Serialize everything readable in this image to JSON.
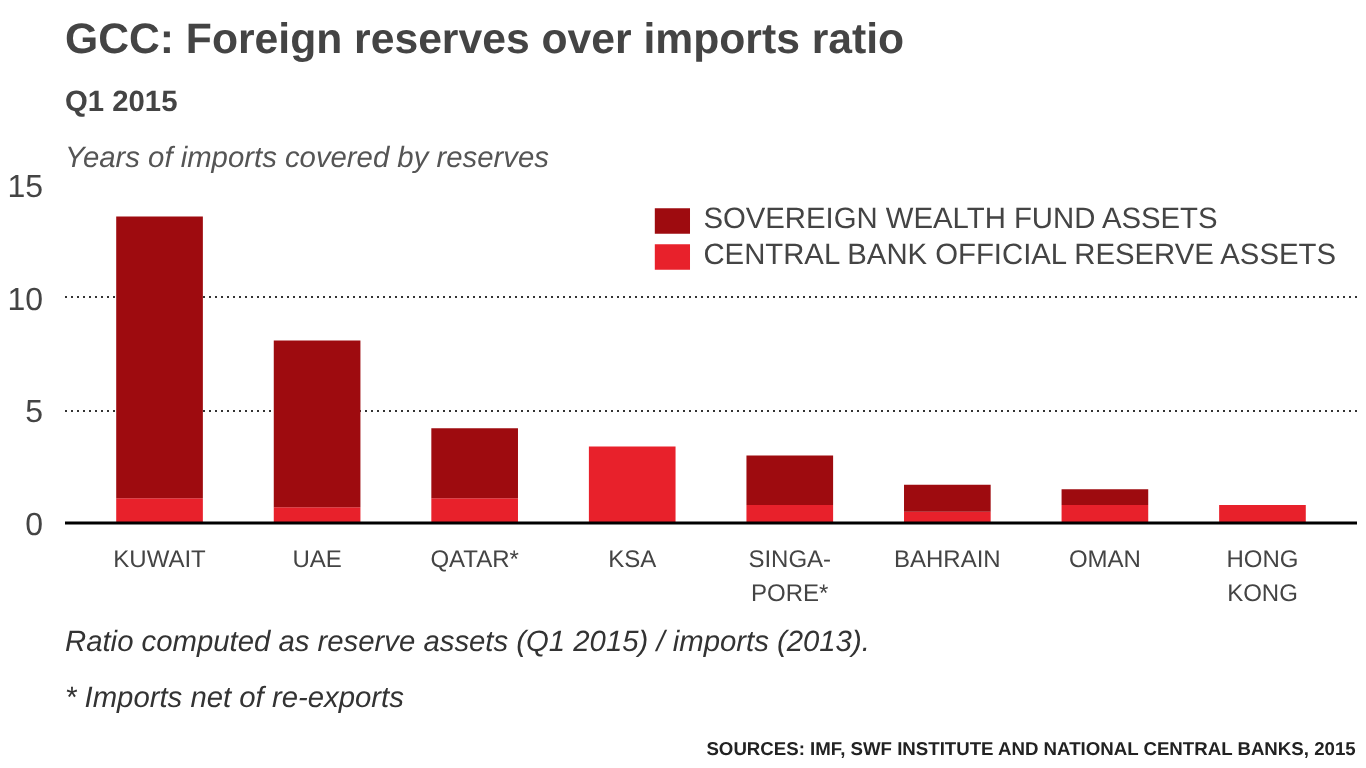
{
  "chart_data": {
    "type": "bar",
    "title": "GCC: Foreign reserves over imports ratio",
    "subtitle": "Q1 2015",
    "ylabel": "Years of imports covered by reserves",
    "categories": [
      "KUWAIT",
      "UAE",
      "QATAR*",
      "KSA",
      "SINGA-\nPORE*",
      "BAHRAIN",
      "OMAN",
      "HONG\nKONG"
    ],
    "stacked": true,
    "series": [
      {
        "name": "CENTRAL BANK OFFICIAL RESERVE ASSETS",
        "color": "#e8212b",
        "values": [
          1.1,
          0.7,
          1.1,
          3.4,
          0.8,
          0.5,
          0.8,
          0.8
        ]
      },
      {
        "name": "SOVEREIGN WEALTH FUND ASSETS",
        "color": "#9e0b0f",
        "values": [
          12.5,
          7.4,
          3.1,
          0,
          2.2,
          1.2,
          0.7,
          0
        ]
      }
    ],
    "ylim": [
      0,
      15
    ],
    "yticks": [
      0,
      5,
      10,
      15
    ],
    "grid": "y",
    "legend": "top right",
    "annotations": [
      "Ratio computed as reserve assets (Q1 2015) / imports (2013).",
      "* Imports net of re-exports",
      "SOURCES: IMF, SWF INSTITUTE AND NATIONAL CENTRAL BANKS, 2015"
    ]
  }
}
